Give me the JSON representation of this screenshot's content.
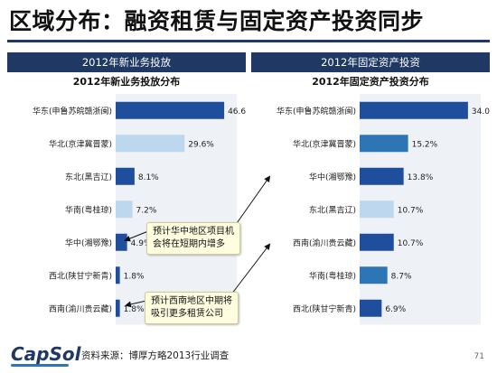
{
  "slide": {
    "title": "区域分布：融资租赁与固定资产投资同步",
    "left_header": "2012年新业务投放",
    "right_header": "2012年固定资产投资",
    "callout_1": [
      "预计华中地区项目机",
      "会将在短期内增多"
    ],
    "callout_2": [
      "预计西南地区中期将",
      "吸引更多租赁公司"
    ],
    "logo": "CapSol",
    "source": "资料来源：博厚方略2013行业调查",
    "page_number": "71"
  },
  "colors": {
    "dark_navy": "#1f3864",
    "bar_dark": "#1f4e9c",
    "bar_light": "#bdd7ee",
    "bar_mid": "#2e75b6",
    "plot_bg": "#eef1f5",
    "callout_bg": "#fffde0"
  },
  "chart_data": [
    {
      "type": "bar",
      "orientation": "horizontal",
      "title": "2012年新业务投放分布",
      "categories": [
        "华东(申鲁苏皖赣浙闽)",
        "华北(京津冀晋蒙)",
        "东北(黑吉辽)",
        "华南(粤桂琼)",
        "华中(湘鄂豫)",
        "西北(陕甘宁新青)",
        "西南(渝川贵云藏)"
      ],
      "values": [
        46.6,
        29.6,
        8.1,
        7.2,
        4.9,
        1.8,
        1.8
      ],
      "labels": [
        "46.6%",
        "29.6%",
        "8.1%",
        "7.2%",
        "4.9%",
        "1.8%",
        "1.8%"
      ],
      "bar_colors": [
        "#1f4e9c",
        "#bdd7ee",
        "#1f4e9c",
        "#bdd7ee",
        "#1f4e9c",
        "#1f4e9c",
        "#1f4e9c"
      ],
      "xlim": [
        0,
        52
      ],
      "unit": "%"
    },
    {
      "type": "bar",
      "orientation": "horizontal",
      "title": "2012年固定资产投资分布",
      "categories": [
        "华东(申鲁苏皖赣浙闽)",
        "华北(京津冀晋蒙)",
        "华中(湘鄂豫)",
        "东北(黑吉辽)",
        "西南(渝川贵云藏)",
        "华南(粤桂琼)",
        "西北(陕甘宁新青)"
      ],
      "values": [
        34.0,
        15.2,
        13.8,
        10.7,
        10.7,
        8.7,
        6.9
      ],
      "labels": [
        "34.0%",
        "15.2%",
        "13.8%",
        "10.7%",
        "10.7%",
        "8.7%",
        "6.9%"
      ],
      "bar_colors": [
        "#1f4e9c",
        "#2e75b6",
        "#1f4e9c",
        "#bdd7ee",
        "#1f4e9c",
        "#2e75b6",
        "#1f4e9c"
      ],
      "xlim": [
        0,
        38
      ],
      "unit": "%"
    }
  ]
}
